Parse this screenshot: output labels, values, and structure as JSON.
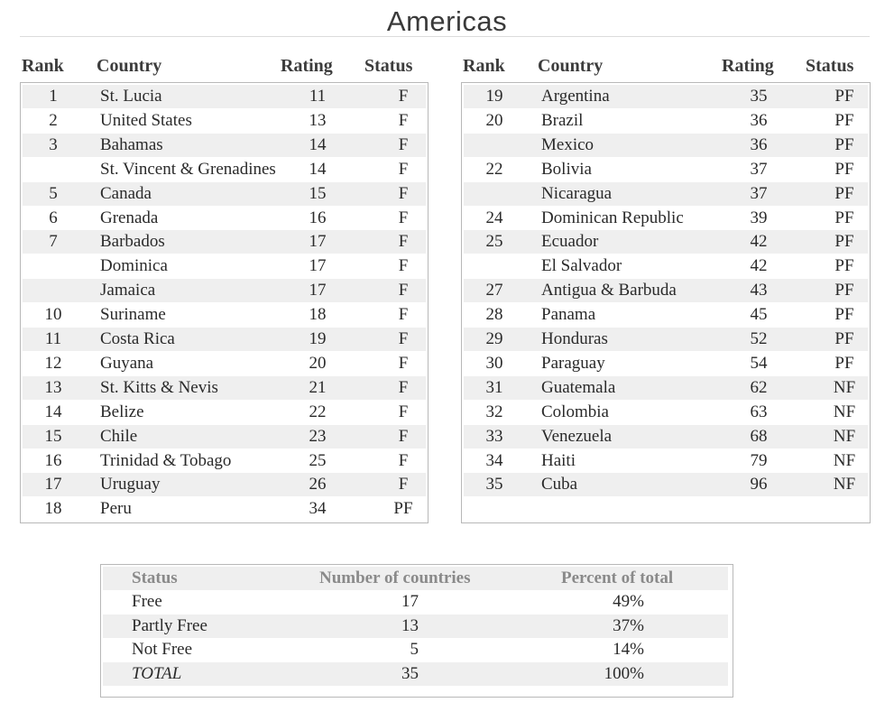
{
  "title": "Americas",
  "columns": {
    "rank": "Rank",
    "country": "Country",
    "rating": "Rating",
    "status": "Status"
  },
  "left_rows": [
    {
      "rank": "1",
      "country": "St. Lucia",
      "rating": "11",
      "status": "F"
    },
    {
      "rank": "2",
      "country": "United States",
      "rating": "13",
      "status": "F"
    },
    {
      "rank": "3",
      "country": "Bahamas",
      "rating": "14",
      "status": "F"
    },
    {
      "rank": "",
      "country": "St. Vincent & Grenadines",
      "rating": "14",
      "status": "F"
    },
    {
      "rank": "5",
      "country": "Canada",
      "rating": "15",
      "status": "F"
    },
    {
      "rank": "6",
      "country": "Grenada",
      "rating": "16",
      "status": "F"
    },
    {
      "rank": "7",
      "country": "Barbados",
      "rating": "17",
      "status": "F"
    },
    {
      "rank": "",
      "country": "Dominica",
      "rating": "17",
      "status": "F"
    },
    {
      "rank": "",
      "country": "Jamaica",
      "rating": "17",
      "status": "F"
    },
    {
      "rank": "10",
      "country": "Suriname",
      "rating": "18",
      "status": "F"
    },
    {
      "rank": "11",
      "country": "Costa Rica",
      "rating": "19",
      "status": "F"
    },
    {
      "rank": "12",
      "country": "Guyana",
      "rating": "20",
      "status": "F"
    },
    {
      "rank": "13",
      "country": "St. Kitts & Nevis",
      "rating": "21",
      "status": "F"
    },
    {
      "rank": "14",
      "country": "Belize",
      "rating": "22",
      "status": "F"
    },
    {
      "rank": "15",
      "country": "Chile",
      "rating": "23",
      "status": "F"
    },
    {
      "rank": "16",
      "country": "Trinidad & Tobago",
      "rating": "25",
      "status": "F"
    },
    {
      "rank": "17",
      "country": "Uruguay",
      "rating": "26",
      "status": "F"
    },
    {
      "rank": "18",
      "country": "Peru",
      "rating": "34",
      "status": "PF"
    }
  ],
  "right_rows": [
    {
      "rank": "19",
      "country": "Argentina",
      "rating": "35",
      "status": "PF"
    },
    {
      "rank": "20",
      "country": "Brazil",
      "rating": "36",
      "status": "PF"
    },
    {
      "rank": "",
      "country": "Mexico",
      "rating": "36",
      "status": "PF"
    },
    {
      "rank": "22",
      "country": "Bolivia",
      "rating": "37",
      "status": "PF"
    },
    {
      "rank": "",
      "country": "Nicaragua",
      "rating": "37",
      "status": "PF"
    },
    {
      "rank": "24",
      "country": "Dominican Republic",
      "rating": "39",
      "status": "PF"
    },
    {
      "rank": "25",
      "country": "Ecuador",
      "rating": "42",
      "status": "PF"
    },
    {
      "rank": "",
      "country": "El Salvador",
      "rating": "42",
      "status": "PF"
    },
    {
      "rank": "27",
      "country": "Antigua & Barbuda",
      "rating": "43",
      "status": "PF"
    },
    {
      "rank": "28",
      "country": "Panama",
      "rating": "45",
      "status": "PF"
    },
    {
      "rank": "29",
      "country": "Honduras",
      "rating": "52",
      "status": "PF"
    },
    {
      "rank": "30",
      "country": "Paraguay",
      "rating": "54",
      "status": "PF"
    },
    {
      "rank": "31",
      "country": "Guatemala",
      "rating": "62",
      "status": "NF"
    },
    {
      "rank": "32",
      "country": "Colombia",
      "rating": "63",
      "status": "NF"
    },
    {
      "rank": "33",
      "country": "Venezuela",
      "rating": "68",
      "status": "NF"
    },
    {
      "rank": "34",
      "country": "Haiti",
      "rating": "79",
      "status": "NF"
    },
    {
      "rank": "35",
      "country": "Cuba",
      "rating": "96",
      "status": "NF"
    }
  ],
  "summary": {
    "headers": {
      "status": "Status",
      "count": "Number of countries",
      "percent": "Percent of total"
    },
    "rows": [
      {
        "status": "Free",
        "count": "17",
        "percent": "49%"
      },
      {
        "status": "Partly Free",
        "count": "13",
        "percent": "37%"
      },
      {
        "status": "Not Free",
        "count": "5",
        "percent": "14%"
      },
      {
        "status": "TOTAL",
        "count": "35",
        "percent": "100%"
      }
    ]
  }
}
